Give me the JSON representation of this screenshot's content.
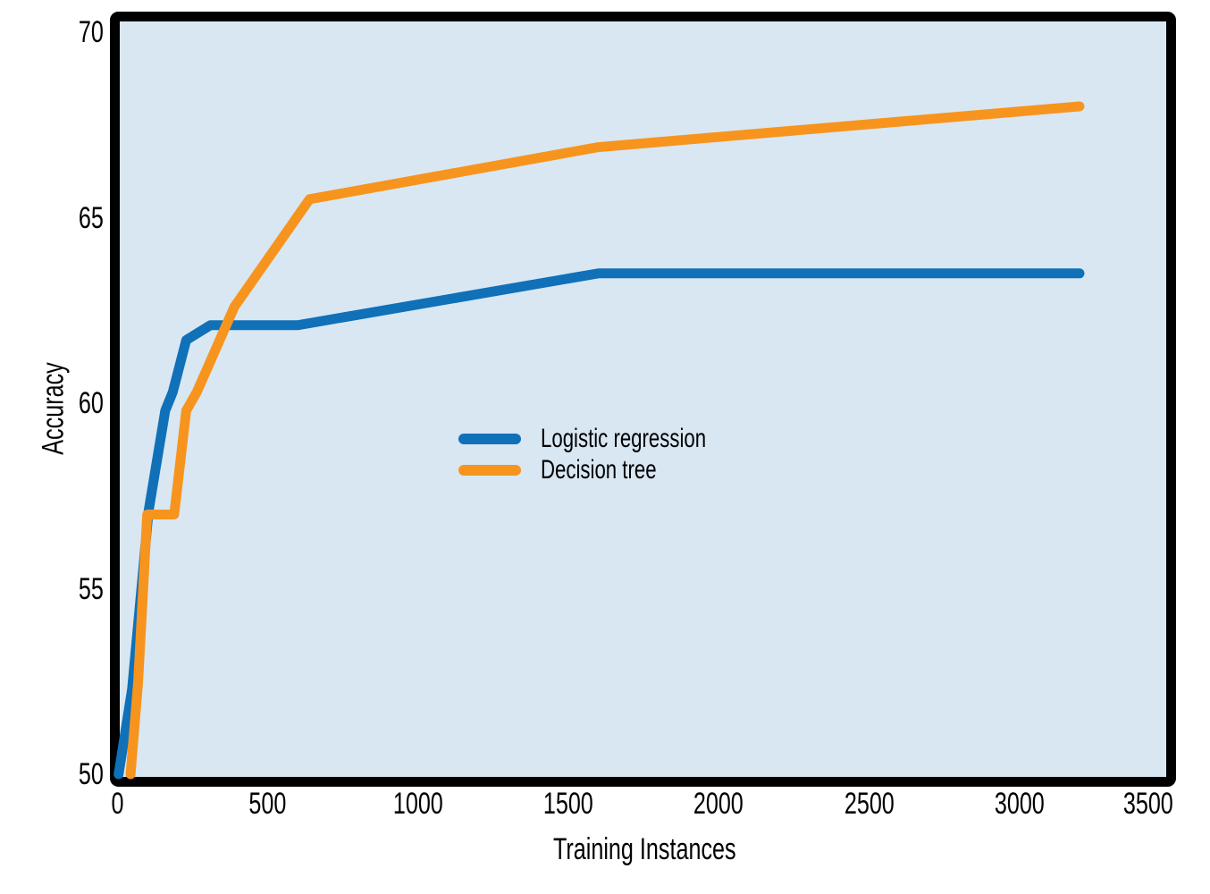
{
  "chart_data": {
    "type": "line",
    "title": "",
    "xlabel": "Training Instances",
    "ylabel": "Accuracy",
    "xlim": [
      0,
      3500
    ],
    "ylim": [
      50,
      70
    ],
    "x_ticks": [
      0,
      500,
      1000,
      1500,
      2000,
      2500,
      3000,
      3500
    ],
    "y_ticks": [
      50,
      55,
      60,
      65,
      70
    ],
    "grid": false,
    "legend_position": "inside center-left",
    "plot_background": "#D9E7F2",
    "border_color": "#000000",
    "text_color": "#000000",
    "series": [
      {
        "name": "Logistic regression",
        "color": "#1070B8",
        "points": [
          [
            5,
            50
          ],
          [
            50,
            52.3
          ],
          [
            105,
            57.1
          ],
          [
            160,
            59.8
          ],
          [
            185,
            60.3
          ],
          [
            230,
            61.7
          ],
          [
            310,
            62.1
          ],
          [
            600,
            62.1
          ],
          [
            1600,
            63.5
          ],
          [
            3200,
            63.5
          ]
        ]
      },
      {
        "name": "Decision tree",
        "color": "#F7941E",
        "points": [
          [
            45,
            50
          ],
          [
            70,
            52.5
          ],
          [
            100,
            57
          ],
          [
            190,
            57
          ],
          [
            230,
            59.8
          ],
          [
            265,
            60.3
          ],
          [
            390,
            62.6
          ],
          [
            640,
            65.5
          ],
          [
            1600,
            66.9
          ],
          [
            3200,
            68
          ]
        ]
      }
    ]
  }
}
